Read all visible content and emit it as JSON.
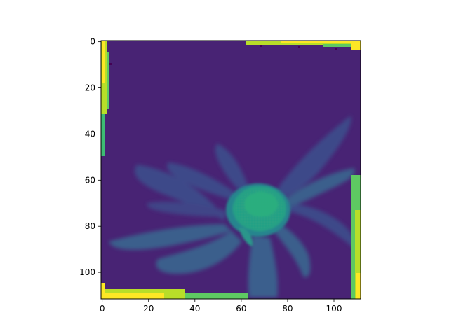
{
  "chart_data": {
    "type": "heatmap",
    "title": "",
    "xlabel": "",
    "ylabel": "",
    "xlim": [
      -0.5,
      111.5
    ],
    "ylim": [
      111.5,
      -0.5
    ],
    "y_inverted": true,
    "colormap": "viridis",
    "xticks": [
      0,
      20,
      40,
      60,
      80,
      100
    ],
    "yticks": [
      0,
      20,
      40,
      60,
      80,
      100
    ],
    "xtick_labels": [
      "0",
      "20",
      "40",
      "60",
      "80",
      "100"
    ],
    "ytick_labels": [
      "0",
      "20",
      "40",
      "60",
      "80",
      "100"
    ],
    "grid": false,
    "legend": "none",
    "image_size": [
      112,
      112
    ],
    "content": "grayscale photo of a flower (daisy-like) rendered with viridis colormap; bright yellow-green border artifacts along the image edges",
    "flower_center": [
      70,
      72
    ],
    "value_range": [
      0,
      1
    ]
  },
  "colors": {
    "background_level": "#482374",
    "petal_level": "#3b5e8c",
    "center_level": "#1f9e89",
    "border_level": "#b8de29",
    "axes_edge": "#000000"
  }
}
